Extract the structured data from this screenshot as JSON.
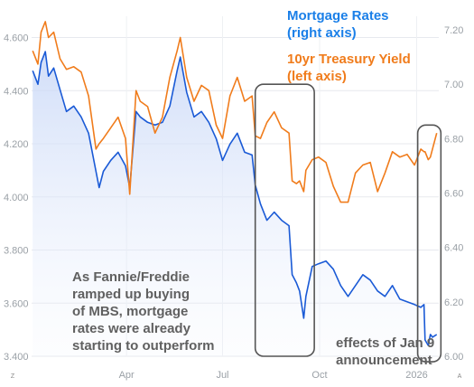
{
  "chart_data": {
    "type": "line",
    "x_range": [
      "2025-01-01",
      "2026-01-22"
    ],
    "x_ticks": [
      {
        "label": "Apr",
        "date": "2025-04-01"
      },
      {
        "label": "Jul",
        "date": "2025-07-01"
      },
      {
        "label": "Oct",
        "date": "2025-10-01"
      },
      {
        "label": "2026",
        "date": "2026-01-01"
      }
    ],
    "y_left": {
      "min": 3.4,
      "max": 4.68,
      "ticks": [
        "3.400",
        "3.600",
        "3.800",
        "4.000",
        "4.200",
        "4.400",
        "4.600"
      ]
    },
    "y_right": {
      "min": 6.0,
      "max": 7.25,
      "ticks": [
        "6.00",
        "6.20",
        "6.40",
        "6.60",
        "6.80",
        "7.00",
        "7.20"
      ]
    },
    "grid": true,
    "legend_position": "top-right",
    "series": [
      {
        "name": "Mortgage Rates\n(right axis)",
        "axis": "right",
        "color": "#1a5ad6",
        "fill": "area",
        "points": [
          [
            "2025-01-02",
            7.05
          ],
          [
            "2025-01-07",
            7.0
          ],
          [
            "2025-01-10",
            7.08
          ],
          [
            "2025-01-14",
            7.12
          ],
          [
            "2025-01-17",
            7.03
          ],
          [
            "2025-01-22",
            7.06
          ],
          [
            "2025-01-28",
            6.98
          ],
          [
            "2025-02-03",
            6.9
          ],
          [
            "2025-02-10",
            6.92
          ],
          [
            "2025-02-17",
            6.88
          ],
          [
            "2025-02-24",
            6.82
          ],
          [
            "2025-03-03",
            6.68
          ],
          [
            "2025-03-06",
            6.62
          ],
          [
            "2025-03-10",
            6.68
          ],
          [
            "2025-03-17",
            6.72
          ],
          [
            "2025-03-24",
            6.75
          ],
          [
            "2025-03-31",
            6.7
          ],
          [
            "2025-04-04",
            6.62
          ],
          [
            "2025-04-10",
            6.9
          ],
          [
            "2025-04-14",
            6.88
          ],
          [
            "2025-04-21",
            6.86
          ],
          [
            "2025-04-28",
            6.85
          ],
          [
            "2025-05-05",
            6.86
          ],
          [
            "2025-05-12",
            6.92
          ],
          [
            "2025-05-19",
            7.05
          ],
          [
            "2025-05-22",
            7.1
          ],
          [
            "2025-05-28",
            6.97
          ],
          [
            "2025-06-04",
            6.88
          ],
          [
            "2025-06-11",
            6.9
          ],
          [
            "2025-06-18",
            6.86
          ],
          [
            "2025-06-25",
            6.8
          ],
          [
            "2025-07-01",
            6.72
          ],
          [
            "2025-07-08",
            6.78
          ],
          [
            "2025-07-15",
            6.82
          ],
          [
            "2025-07-22",
            6.75
          ],
          [
            "2025-07-29",
            6.74
          ],
          [
            "2025-08-01",
            6.63
          ],
          [
            "2025-08-06",
            6.56
          ],
          [
            "2025-08-12",
            6.5
          ],
          [
            "2025-08-19",
            6.53
          ],
          [
            "2025-08-26",
            6.5
          ],
          [
            "2025-09-02",
            6.48
          ],
          [
            "2025-09-05",
            6.3
          ],
          [
            "2025-09-09",
            6.27
          ],
          [
            "2025-09-12",
            6.24
          ],
          [
            "2025-09-16",
            6.14
          ],
          [
            "2025-09-18",
            6.22
          ],
          [
            "2025-09-24",
            6.33
          ],
          [
            "2025-09-30",
            6.34
          ],
          [
            "2025-10-07",
            6.35
          ],
          [
            "2025-10-14",
            6.32
          ],
          [
            "2025-10-21",
            6.26
          ],
          [
            "2025-10-28",
            6.22
          ],
          [
            "2025-11-04",
            6.26
          ],
          [
            "2025-11-11",
            6.3
          ],
          [
            "2025-11-18",
            6.28
          ],
          [
            "2025-11-25",
            6.24
          ],
          [
            "2025-12-02",
            6.22
          ],
          [
            "2025-12-09",
            6.26
          ],
          [
            "2025-12-16",
            6.21
          ],
          [
            "2025-12-23",
            6.2
          ],
          [
            "2025-12-30",
            6.19
          ],
          [
            "2026-01-05",
            6.18
          ],
          [
            "2026-01-08",
            6.19
          ],
          [
            "2026-01-09",
            6.06
          ],
          [
            "2026-01-12",
            6.04
          ],
          [
            "2026-01-14",
            6.08
          ],
          [
            "2026-01-16",
            6.07
          ],
          [
            "2026-01-20",
            6.08
          ]
        ]
      },
      {
        "name": "10yr Treasury Yield\n(left axis)",
        "axis": "left",
        "color": "#f07c1c",
        "fill": "none",
        "points": [
          [
            "2025-01-02",
            4.55
          ],
          [
            "2025-01-07",
            4.5
          ],
          [
            "2025-01-10",
            4.62
          ],
          [
            "2025-01-14",
            4.66
          ],
          [
            "2025-01-17",
            4.6
          ],
          [
            "2025-01-22",
            4.62
          ],
          [
            "2025-01-28",
            4.52
          ],
          [
            "2025-02-03",
            4.48
          ],
          [
            "2025-02-10",
            4.49
          ],
          [
            "2025-02-17",
            4.47
          ],
          [
            "2025-02-24",
            4.38
          ],
          [
            "2025-03-03",
            4.18
          ],
          [
            "2025-03-06",
            4.2
          ],
          [
            "2025-03-10",
            4.22
          ],
          [
            "2025-03-17",
            4.26
          ],
          [
            "2025-03-24",
            4.3
          ],
          [
            "2025-03-31",
            4.22
          ],
          [
            "2025-04-04",
            4.01
          ],
          [
            "2025-04-10",
            4.4
          ],
          [
            "2025-04-14",
            4.36
          ],
          [
            "2025-04-21",
            4.34
          ],
          [
            "2025-04-28",
            4.24
          ],
          [
            "2025-05-05",
            4.3
          ],
          [
            "2025-05-12",
            4.45
          ],
          [
            "2025-05-19",
            4.55
          ],
          [
            "2025-05-22",
            4.6
          ],
          [
            "2025-05-28",
            4.45
          ],
          [
            "2025-06-04",
            4.36
          ],
          [
            "2025-06-11",
            4.42
          ],
          [
            "2025-06-18",
            4.4
          ],
          [
            "2025-06-25",
            4.27
          ],
          [
            "2025-07-01",
            4.22
          ],
          [
            "2025-07-08",
            4.38
          ],
          [
            "2025-07-15",
            4.45
          ],
          [
            "2025-07-22",
            4.36
          ],
          [
            "2025-07-29",
            4.38
          ],
          [
            "2025-08-01",
            4.23
          ],
          [
            "2025-08-06",
            4.22
          ],
          [
            "2025-08-12",
            4.28
          ],
          [
            "2025-08-19",
            4.32
          ],
          [
            "2025-08-26",
            4.26
          ],
          [
            "2025-09-02",
            4.24
          ],
          [
            "2025-09-05",
            4.06
          ],
          [
            "2025-09-09",
            4.05
          ],
          [
            "2025-09-12",
            4.06
          ],
          [
            "2025-09-16",
            4.02
          ],
          [
            "2025-09-18",
            4.1
          ],
          [
            "2025-09-24",
            4.14
          ],
          [
            "2025-09-30",
            4.15
          ],
          [
            "2025-10-07",
            4.13
          ],
          [
            "2025-10-14",
            4.04
          ],
          [
            "2025-10-21",
            3.98
          ],
          [
            "2025-10-28",
            3.98
          ],
          [
            "2025-11-04",
            4.09
          ],
          [
            "2025-11-11",
            4.12
          ],
          [
            "2025-11-18",
            4.13
          ],
          [
            "2025-11-25",
            4.02
          ],
          [
            "2025-12-02",
            4.09
          ],
          [
            "2025-12-09",
            4.17
          ],
          [
            "2025-12-16",
            4.15
          ],
          [
            "2025-12-23",
            4.16
          ],
          [
            "2025-12-30",
            4.12
          ],
          [
            "2026-01-05",
            4.18
          ],
          [
            "2026-01-08",
            4.17
          ],
          [
            "2026-01-09",
            4.17
          ],
          [
            "2026-01-12",
            4.14
          ],
          [
            "2026-01-14",
            4.15
          ],
          [
            "2026-01-16",
            4.18
          ],
          [
            "2026-01-20",
            4.24
          ]
        ]
      }
    ],
    "annotations": [
      {
        "id": "fannie",
        "text": "As Fannie/Freddie\nramped up buying\nof MBS, mortgage\nrates were already\nstarting to outperform"
      },
      {
        "id": "jan9",
        "text": "effects of Jan 9\nannouncement"
      }
    ],
    "highlight_boxes": [
      {
        "id": "box-fannie",
        "from": "2025-08-01",
        "to": "2025-09-26",
        "y_right_top": 7.0,
        "y_right_bottom": 6.0
      },
      {
        "id": "box-jan9",
        "from": "2026-01-02",
        "to": "2026-01-24",
        "y_right_top": 6.85,
        "y_right_bottom": 5.98
      }
    ],
    "corner_marks": {
      "left": "Z",
      "right": "A"
    }
  }
}
